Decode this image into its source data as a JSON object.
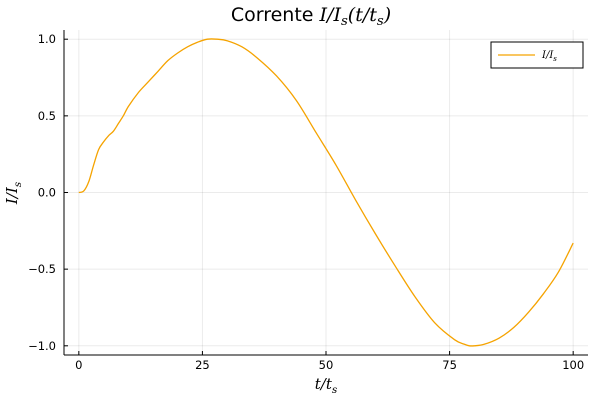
{
  "chart_data": {
    "type": "line",
    "title_plain": "Corrente ",
    "title_math": "I/I",
    "title_math_sub": "s",
    "title_math_rest": "(t/t",
    "title_math_sub2": "s",
    "title_math_close": ")",
    "xlabel_main": "t/t",
    "xlabel_sub": "s",
    "ylabel_main": "I/I",
    "ylabel_sub": "s",
    "xlim": [
      -3,
      103
    ],
    "ylim": [
      -1.06,
      1.06
    ],
    "xticks": [
      0,
      25,
      50,
      75,
      100
    ],
    "yticks": [
      -1.0,
      -0.5,
      0.0,
      0.5,
      1.0
    ],
    "xtick_labels": [
      "0",
      "25",
      "50",
      "75",
      "100"
    ],
    "ytick_labels": [
      "−1.0",
      "−0.5",
      "0.0",
      "0.5",
      "1.0"
    ],
    "grid": true,
    "legend_position": "top-right",
    "series": [
      {
        "name_main": "I/I",
        "name_sub": "s",
        "color": "#f5a300",
        "x": [
          0,
          1,
          2,
          3,
          4,
          5,
          6,
          7,
          8,
          9,
          10,
          12,
          14,
          16,
          18,
          20,
          22,
          24,
          26,
          28,
          30,
          33,
          36,
          40,
          44,
          48,
          52,
          56,
          60,
          64,
          68,
          72,
          76,
          78,
          79,
          80,
          82,
          85,
          88,
          91,
          94,
          97,
          100
        ],
        "y": [
          0.0,
          0.01,
          0.07,
          0.18,
          0.28,
          0.33,
          0.37,
          0.4,
          0.45,
          0.5,
          0.56,
          0.65,
          0.72,
          0.79,
          0.86,
          0.91,
          0.95,
          0.98,
          1.0,
          1.0,
          0.99,
          0.95,
          0.88,
          0.76,
          0.6,
          0.39,
          0.18,
          -0.05,
          -0.27,
          -0.48,
          -0.68,
          -0.85,
          -0.96,
          -0.99,
          -1.0,
          -1.0,
          -0.99,
          -0.95,
          -0.88,
          -0.78,
          -0.66,
          -0.52,
          -0.33
        ]
      }
    ]
  }
}
